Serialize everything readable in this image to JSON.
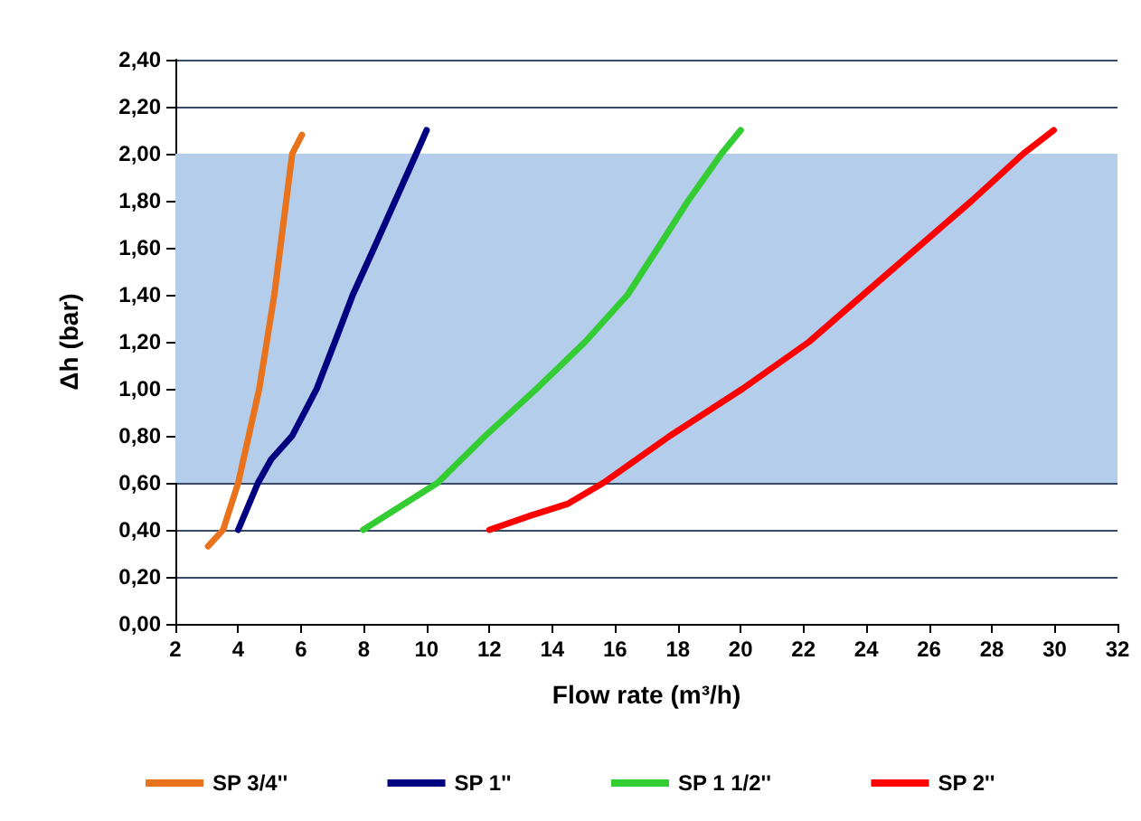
{
  "chart_data": {
    "type": "line",
    "xlabel": "Flow rate (m³/h)",
    "ylabel": "Δh (bar)",
    "xlim": [
      2,
      32
    ],
    "xticks": [
      2,
      4,
      6,
      8,
      10,
      12,
      14,
      16,
      18,
      20,
      22,
      24,
      26,
      28,
      30,
      32
    ],
    "ylim": [
      0,
      2.4
    ],
    "yticks": [
      {
        "value": 0,
        "label": "0,00"
      },
      {
        "value": 0.2,
        "label": "0,20"
      },
      {
        "value": 0.4,
        "label": "0,40"
      },
      {
        "value": 0.6,
        "label": "0,60"
      },
      {
        "value": 0.8,
        "label": "0,80"
      },
      {
        "value": 1,
        "label": "1,00"
      },
      {
        "value": 1.2,
        "label": "1,20"
      },
      {
        "value": 1.4,
        "label": "1,40"
      },
      {
        "value": 1.6,
        "label": "1,60"
      },
      {
        "value": 1.8,
        "label": "1,80"
      },
      {
        "value": 2,
        "label": "2,00"
      },
      {
        "value": 2.2,
        "label": "2,20"
      },
      {
        "value": 2.4,
        "label": "2,40"
      }
    ],
    "grid": "y",
    "legend": "bottom",
    "marker": "none",
    "line_style": "solid",
    "bands": [
      {
        "axis": "y",
        "from": 0.6,
        "to": 2.0,
        "color": "#b4cdea"
      }
    ],
    "series": [
      {
        "name": "SP 3/4''",
        "color": "#e8731c",
        "x": [
          3.04,
          3.52,
          4.0,
          4.67,
          5.15,
          5.53,
          5.72,
          6.03
        ],
        "values": [
          0.33,
          0.4,
          0.6,
          1.0,
          1.4,
          1.8,
          2.0,
          2.08
        ]
      },
      {
        "name": "SP 1''",
        "color": "#000080",
        "x": [
          4.0,
          4.63,
          5.05,
          5.72,
          6.5,
          7.08,
          7.65,
          8.33,
          9.0,
          9.67,
          10.0
        ],
        "values": [
          0.4,
          0.6,
          0.7,
          0.8,
          1.0,
          1.2,
          1.4,
          1.6,
          1.8,
          2.0,
          2.1
        ]
      },
      {
        "name": "SP 1 1/2''",
        "color": "#33cc33",
        "x": [
          7.98,
          10.35,
          11.87,
          13.5,
          15.05,
          16.4,
          17.37,
          18.33,
          19.39,
          20.0
        ],
        "values": [
          0.4,
          0.6,
          0.8,
          1.0,
          1.2,
          1.4,
          1.6,
          1.8,
          2.0,
          2.1
        ]
      },
      {
        "name": "SP 2''",
        "color": "#ff0000",
        "x": [
          12.0,
          13.3,
          14.48,
          15.63,
          17.75,
          20.06,
          22.18,
          23.9,
          25.63,
          27.36,
          29.0,
          29.97
        ],
        "values": [
          0.4,
          0.46,
          0.51,
          0.6,
          0.8,
          1.0,
          1.2,
          1.4,
          1.6,
          1.8,
          2.0,
          2.1
        ]
      }
    ]
  }
}
